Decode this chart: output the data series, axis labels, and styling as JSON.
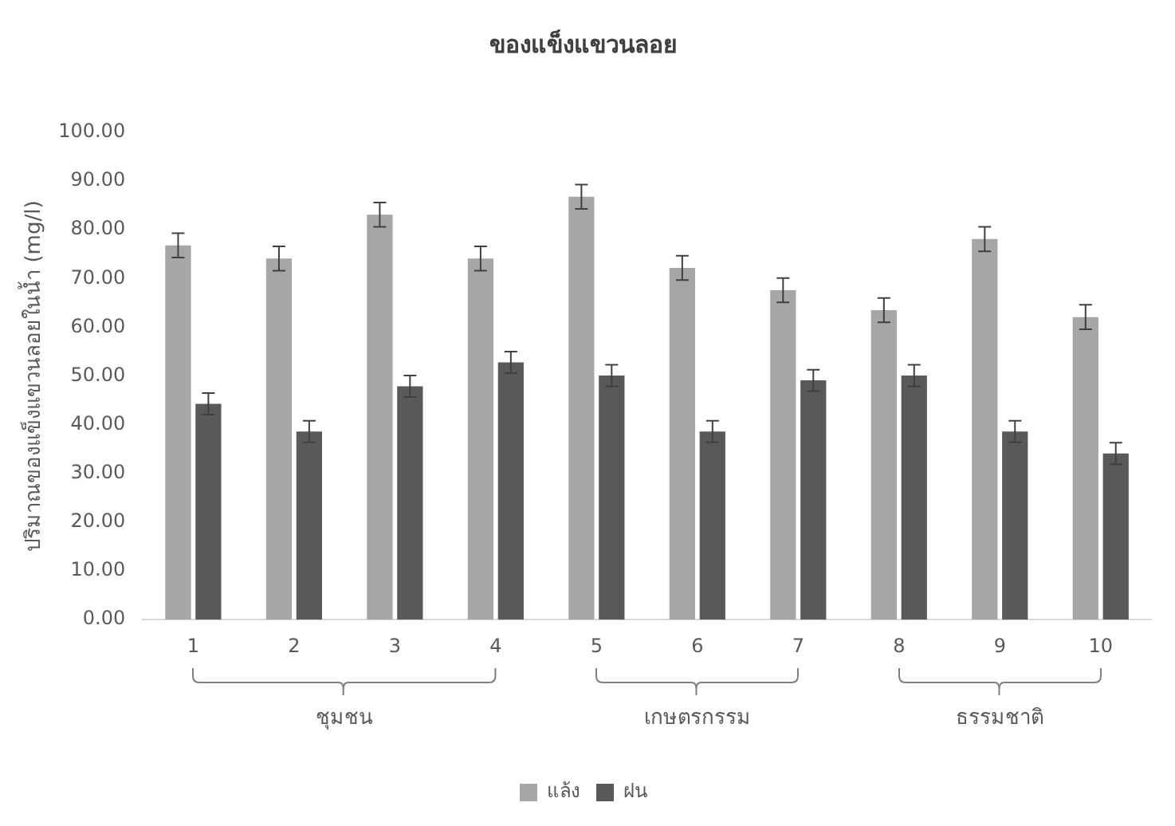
{
  "chart_data": {
    "type": "bar",
    "title": "ของแข็งแขวนลอย",
    "ylabel": "ปริมาณของแข็งแขวนลอยในน้ำ (mg/l)",
    "categories": [
      "1",
      "2",
      "3",
      "4",
      "5",
      "6",
      "7",
      "8",
      "9",
      "10"
    ],
    "series": [
      {
        "name": "แล้ง",
        "color": "#a6a6a6",
        "values": [
          76.8,
          74.1,
          83.1,
          74.1,
          86.8,
          72.2,
          67.6,
          63.5,
          78.1,
          62.1
        ],
        "errors": [
          2.5,
          2.5,
          2.5,
          2.5,
          2.5,
          2.5,
          2.5,
          2.5,
          2.5,
          2.5
        ]
      },
      {
        "name": "ฝน",
        "color": "#595959",
        "values": [
          44.3,
          38.6,
          47.9,
          52.8,
          50.1,
          38.6,
          49.1,
          50.1,
          38.6,
          34.1
        ],
        "errors": [
          2.2,
          2.2,
          2.2,
          2.2,
          2.2,
          2.2,
          2.2,
          2.2,
          2.2,
          2.2
        ]
      }
    ],
    "ylim": [
      0,
      100
    ],
    "yticks": [
      {
        "value": 0,
        "label": "0.00"
      },
      {
        "value": 10,
        "label": "10.00"
      },
      {
        "value": 20,
        "label": "20.00"
      },
      {
        "value": 30,
        "label": "30.00"
      },
      {
        "value": 40,
        "label": "40.00"
      },
      {
        "value": 50,
        "label": "50.00"
      },
      {
        "value": 60,
        "label": "60.00"
      },
      {
        "value": 70,
        "label": "70.00"
      },
      {
        "value": 80,
        "label": "80.00"
      },
      {
        "value": 90,
        "label": "90.00"
      },
      {
        "value": 100,
        "label": "100.00"
      }
    ],
    "annotations": [
      "ชุมชน",
      "เกษตรกรรม",
      "ธรรมชาติ"
    ],
    "grid": false,
    "legend": "bottom"
  }
}
